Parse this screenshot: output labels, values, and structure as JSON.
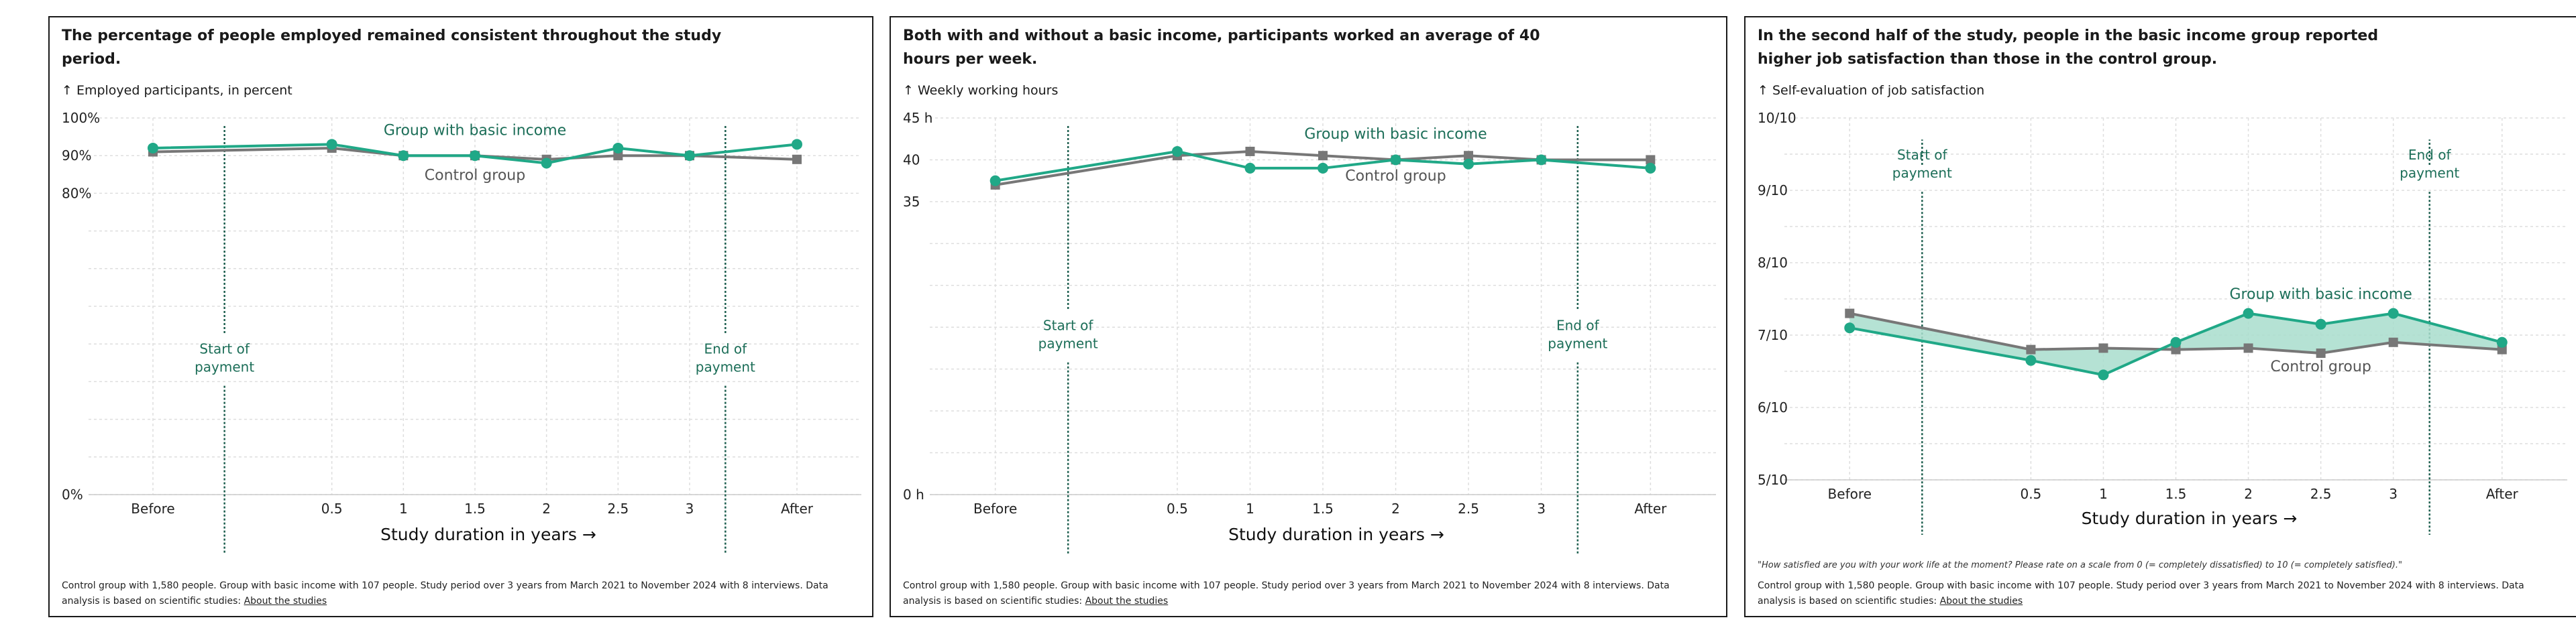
{
  "colors": {
    "green": "#20a887",
    "green_text": "#1c6e58",
    "gray": "#777777",
    "gray_text": "#555555",
    "grid": "#dedede",
    "marker_line": "#1c5e4e",
    "fill": "#a8ddcd"
  },
  "panels": [
    {
      "title": "The percentage of people employed remained consistent throughout the study period.",
      "ylabel": "↑ Employed participants, in percent",
      "footer": "Control group with 1,580 people. Group with basic income with 107 people. Study period over 3 years from March 2021 to November 2024 with 8 interviews. Data analysis is based on scientific studies: ",
      "link": "About the studies"
    },
    {
      "title": "Both with and without a basic income, participants worked an average of 40 hours per week.",
      "ylabel": "↑ Weekly working hours",
      "footer": "Control group with 1,580 people. Group with basic income with 107 people. Study period over 3 years from March 2021 to November 2024 with 8 interviews. Data analysis is based on scientific studies: ",
      "link": "About the studies"
    },
    {
      "title": "In the second half of the study, people in the basic income group reported higher job satisfaction than those in the control group.",
      "ylabel": "↑ Self-evaluation of job satisfaction",
      "quote": "\"How satisfied are you with your work life at the moment? Please rate on a scale from 0 (= completely dissatisfied) to 10 (= completely satisfied).\"",
      "footer": "Control group with 1,580 people. Group with basic income with 107 people. Study period over 3 years from March 2021 to November 2024 with 8 interviews. Data analysis is based on scientific studies: ",
      "link": "About the studies"
    }
  ],
  "chart_data": [
    {
      "type": "line",
      "title": "The percentage of people employed remained consistent throughout the study period.",
      "ylabel": "Employed participants, in percent",
      "xlabel": "Study duration in years →",
      "categories": [
        "Before",
        "0.5",
        "1",
        "1.5",
        "2",
        "2.5",
        "3",
        "After"
      ],
      "x": [
        -0.75,
        0.5,
        1,
        1.5,
        2,
        2.5,
        3,
        3.75
      ],
      "xlim": [
        -1.2,
        4.2
      ],
      "ylim": [
        0,
        100
      ],
      "yticks": [
        {
          "v": 0,
          "label": "0%"
        },
        {
          "v": 80,
          "label": "80%"
        },
        {
          "v": 90,
          "label": "90%"
        },
        {
          "v": 100,
          "label": "100%"
        }
      ],
      "gridlines": [
        0,
        10,
        20,
        30,
        40,
        50,
        60,
        70,
        80,
        90,
        100
      ],
      "fill_between": false,
      "series": [
        {
          "name": "Group with basic income",
          "color": "#20a887",
          "marker": "circle",
          "values": [
            92,
            93,
            90,
            90,
            88,
            92,
            90,
            93
          ],
          "label_at": [
            1.5,
            95.5
          ]
        },
        {
          "name": "Control group",
          "color": "#777777",
          "marker": "square",
          "values": [
            91,
            92,
            90,
            90,
            89,
            90,
            90,
            89
          ],
          "label_at": [
            1.5,
            83.5
          ]
        }
      ],
      "markers": [
        {
          "x": -0.25,
          "label": [
            "Start of",
            "payment"
          ],
          "label_y": 36
        },
        {
          "x": 3.25,
          "label": [
            "End of",
            "payment"
          ],
          "label_y": 36
        }
      ]
    },
    {
      "type": "line",
      "title": "Both with and without a basic income, participants worked an average of 40 hours per week.",
      "ylabel": "Weekly working hours",
      "xlabel": "Study duration in years →",
      "categories": [
        "Before",
        "0.5",
        "1",
        "1.5",
        "2",
        "2.5",
        "3",
        "After"
      ],
      "x": [
        -0.75,
        0.5,
        1,
        1.5,
        2,
        2.5,
        3,
        3.75
      ],
      "xlim": [
        -1.2,
        4.2
      ],
      "ylim": [
        0,
        45
      ],
      "yticks": [
        {
          "v": 0,
          "label": "0 h"
        },
        {
          "v": 35,
          "label": "35"
        },
        {
          "v": 40,
          "label": "40"
        },
        {
          "v": 45,
          "label": "45 h"
        }
      ],
      "gridlines": [
        0,
        5,
        10,
        15,
        20,
        25,
        30,
        35,
        40,
        45
      ],
      "fill_between": false,
      "series": [
        {
          "name": "Group with basic income",
          "color": "#20a887",
          "marker": "circle",
          "values": [
            37.5,
            41,
            39,
            39,
            40,
            39.5,
            40,
            39
          ],
          "label_at": [
            2,
            42.5
          ]
        },
        {
          "name": "Control group",
          "color": "#777777",
          "marker": "square",
          "values": [
            37,
            40.5,
            41,
            40.5,
            40,
            40.5,
            40,
            40
          ],
          "label_at": [
            2,
            37.5
          ]
        }
      ],
      "markers": [
        {
          "x": -0.25,
          "label": [
            "Start of",
            "payment"
          ],
          "label_y": 19
        },
        {
          "x": 3.25,
          "label": [
            "End of",
            "payment"
          ],
          "label_y": 19
        }
      ]
    },
    {
      "type": "area",
      "title": "In the second half of the study, people in the basic income group reported higher job satisfaction than those in the control group.",
      "ylabel": "Self-evaluation of job satisfaction",
      "xlabel": "Study duration in years →",
      "categories": [
        "Before",
        "0.5",
        "1",
        "1.5",
        "2",
        "2.5",
        "3",
        "After"
      ],
      "x": [
        -0.75,
        0.5,
        1,
        1.5,
        2,
        2.5,
        3,
        3.75
      ],
      "xlim": [
        -1.2,
        4.2
      ],
      "ylim": [
        5,
        10
      ],
      "yticks": [
        {
          "v": 5,
          "label": "5/10"
        },
        {
          "v": 6,
          "label": "6/10"
        },
        {
          "v": 7,
          "label": "7/10"
        },
        {
          "v": 8,
          "label": "8/10"
        },
        {
          "v": 9,
          "label": "9/10"
        },
        {
          "v": 10,
          "label": "10/10"
        }
      ],
      "gridlines": [
        5,
        5.5,
        6,
        6.5,
        7,
        7.5,
        8,
        8.5,
        9,
        9.5,
        10
      ],
      "fill_between": true,
      "series": [
        {
          "name": "Group with basic income",
          "color": "#20a887",
          "marker": "circle",
          "values": [
            7.1,
            6.65,
            6.45,
            6.9,
            7.3,
            7.15,
            7.3,
            6.9
          ],
          "label_at": [
            2.5,
            7.5
          ]
        },
        {
          "name": "Control group",
          "color": "#777777",
          "marker": "square",
          "values": [
            7.3,
            6.8,
            6.82,
            6.8,
            6.82,
            6.75,
            6.9,
            6.8
          ],
          "label_at": [
            2.5,
            6.5
          ]
        }
      ],
      "markers": [
        {
          "x": -0.25,
          "label": [
            "Start of",
            "payment"
          ],
          "label_y": 9.35
        },
        {
          "x": 3.25,
          "label": [
            "End of",
            "payment"
          ],
          "label_y": 9.35
        }
      ]
    }
  ]
}
